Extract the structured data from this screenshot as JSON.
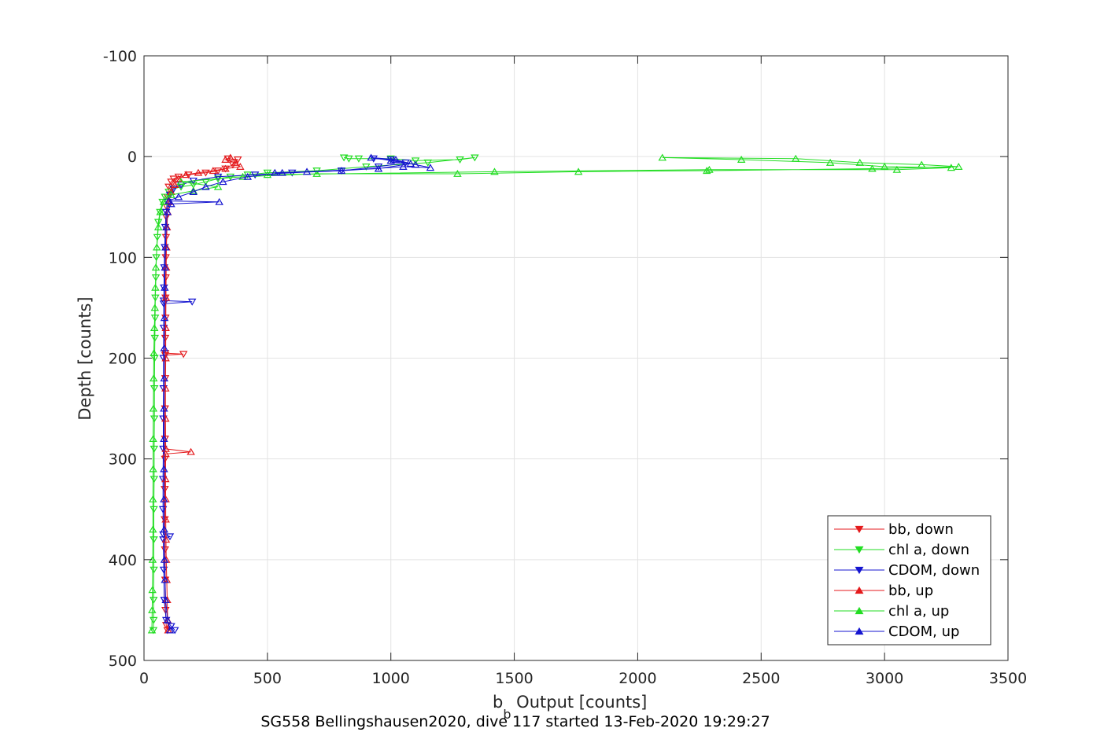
{
  "chart_data": {
    "type": "line",
    "xlabel_main": "b",
    "xlabel_sub": "b",
    "xlabel_rest": " Output [counts]",
    "ylabel": "Depth [counts]",
    "caption": "SG558 Bellingshausen2020, dive 117 started 13-Feb-2020 19:29:27",
    "xlim": [
      0,
      3500
    ],
    "ylim": [
      -100,
      500
    ],
    "y_reversed": true,
    "grid": true,
    "legend_position": "bottom-right",
    "xticks": [
      0,
      500,
      1000,
      1500,
      2000,
      2500,
      3000,
      3500
    ],
    "yticks": [
      -100,
      0,
      100,
      200,
      300,
      400,
      500
    ],
    "xtick_labels": [
      "0",
      "500",
      "1000",
      "1500",
      "2000",
      "2500",
      "3000",
      "3500"
    ],
    "ytick_labels": [
      "-100",
      "0",
      "100",
      "200",
      "300",
      "400",
      "500"
    ],
    "series": [
      {
        "name": "bb, down",
        "color": "#e41a1c",
        "marker": "triangle-down",
        "points": [
          [
            340,
            2
          ],
          [
            380,
            3
          ],
          [
            360,
            8
          ],
          [
            330,
            12
          ],
          [
            300,
            14
          ],
          [
            250,
            16
          ],
          [
            180,
            18
          ],
          [
            140,
            20
          ],
          [
            120,
            22
          ],
          [
            110,
            25
          ],
          [
            100,
            30
          ],
          [
            95,
            40
          ],
          [
            92,
            50
          ],
          [
            90,
            60
          ],
          [
            89,
            80
          ],
          [
            88,
            100
          ],
          [
            88,
            120
          ],
          [
            87,
            140
          ],
          [
            87,
            160
          ],
          [
            86,
            180
          ],
          [
            86,
            195
          ],
          [
            160,
            196
          ],
          [
            86,
            197
          ],
          [
            86,
            220
          ],
          [
            85,
            250
          ],
          [
            85,
            280
          ],
          [
            85,
            300
          ],
          [
            84,
            330
          ],
          [
            84,
            360
          ],
          [
            85,
            390
          ],
          [
            86,
            420
          ],
          [
            87,
            450
          ],
          [
            90,
            465
          ],
          [
            95,
            470
          ]
        ]
      },
      {
        "name": "chl a, down",
        "color": "#22dd22",
        "marker": "triangle-down",
        "points": [
          [
            810,
            1
          ],
          [
            830,
            2
          ],
          [
            870,
            2
          ],
          [
            1000,
            2
          ],
          [
            1100,
            4
          ],
          [
            1280,
            3
          ],
          [
            1340,
            1
          ],
          [
            1150,
            6
          ],
          [
            900,
            10
          ],
          [
            700,
            14
          ],
          [
            500,
            16
          ],
          [
            420,
            18
          ],
          [
            350,
            20
          ],
          [
            300,
            22
          ],
          [
            250,
            25
          ],
          [
            200,
            28
          ],
          [
            150,
            30
          ],
          [
            120,
            32
          ],
          [
            100,
            35
          ],
          [
            85,
            40
          ],
          [
            75,
            45
          ],
          [
            65,
            55
          ],
          [
            58,
            65
          ],
          [
            54,
            80
          ],
          [
            50,
            100
          ],
          [
            48,
            120
          ],
          [
            46,
            140
          ],
          [
            45,
            160
          ],
          [
            44,
            180
          ],
          [
            43,
            200
          ],
          [
            42,
            230
          ],
          [
            42,
            260
          ],
          [
            41,
            290
          ],
          [
            41,
            320
          ],
          [
            40,
            350
          ],
          [
            40,
            380
          ],
          [
            40,
            410
          ],
          [
            39,
            440
          ],
          [
            39,
            460
          ],
          [
            38,
            470
          ]
        ]
      },
      {
        "name": "CDOM, down",
        "color": "#1515d0",
        "marker": "triangle-down",
        "points": [
          [
            930,
            2
          ],
          [
            1000,
            3
          ],
          [
            1060,
            6
          ],
          [
            950,
            10
          ],
          [
            800,
            14
          ],
          [
            600,
            16
          ],
          [
            450,
            18
          ],
          [
            300,
            20
          ],
          [
            200,
            24
          ],
          [
            150,
            28
          ],
          [
            120,
            32
          ],
          [
            105,
            38
          ],
          [
            95,
            45
          ],
          [
            90,
            55
          ],
          [
            86,
            70
          ],
          [
            84,
            90
          ],
          [
            82,
            110
          ],
          [
            81,
            130
          ],
          [
            80,
            143
          ],
          [
            195,
            144
          ],
          [
            80,
            146
          ],
          [
            80,
            170
          ],
          [
            79,
            200
          ],
          [
            79,
            230
          ],
          [
            78,
            260
          ],
          [
            78,
            290
          ],
          [
            77,
            320
          ],
          [
            77,
            350
          ],
          [
            78,
            375
          ],
          [
            105,
            377
          ],
          [
            78,
            380
          ],
          [
            80,
            410
          ],
          [
            82,
            440
          ],
          [
            90,
            460
          ],
          [
            110,
            466
          ],
          [
            125,
            470
          ]
        ]
      },
      {
        "name": "bb, up",
        "color": "#e41a1c",
        "marker": "triangle-up",
        "points": [
          [
            98,
            470
          ],
          [
            96,
            460
          ],
          [
            94,
            440
          ],
          [
            92,
            420
          ],
          [
            90,
            400
          ],
          [
            89,
            380
          ],
          [
            88,
            360
          ],
          [
            88,
            340
          ],
          [
            87,
            320
          ],
          [
            88,
            295
          ],
          [
            190,
            293
          ],
          [
            88,
            290
          ],
          [
            87,
            260
          ],
          [
            87,
            230
          ],
          [
            88,
            200
          ],
          [
            88,
            170
          ],
          [
            89,
            140
          ],
          [
            90,
            110
          ],
          [
            91,
            90
          ],
          [
            93,
            70
          ],
          [
            96,
            55
          ],
          [
            100,
            45
          ],
          [
            110,
            35
          ],
          [
            125,
            28
          ],
          [
            140,
            22
          ],
          [
            170,
            18
          ],
          [
            220,
            16
          ],
          [
            280,
            14
          ],
          [
            330,
            12
          ],
          [
            390,
            10
          ],
          [
            370,
            6
          ],
          [
            330,
            3
          ],
          [
            350,
            1
          ]
        ]
      },
      {
        "name": "chl a, up",
        "color": "#22dd22",
        "marker": "triangle-up",
        "points": [
          [
            32,
            470
          ],
          [
            33,
            450
          ],
          [
            34,
            430
          ],
          [
            35,
            400
          ],
          [
            36,
            370
          ],
          [
            36,
            340
          ],
          [
            37,
            310
          ],
          [
            37,
            280
          ],
          [
            38,
            250
          ],
          [
            39,
            220
          ],
          [
            40,
            195
          ],
          [
            42,
            170
          ],
          [
            44,
            150
          ],
          [
            46,
            130
          ],
          [
            48,
            110
          ],
          [
            52,
            90
          ],
          [
            58,
            70
          ],
          [
            66,
            55
          ],
          [
            80,
            45
          ],
          [
            110,
            38
          ],
          [
            200,
            34
          ],
          [
            300,
            30
          ],
          [
            150,
            25
          ],
          [
            400,
            20
          ],
          [
            700,
            17
          ],
          [
            1270,
            17
          ],
          [
            1760,
            15
          ],
          [
            2280,
            14
          ],
          [
            2950,
            12
          ],
          [
            3300,
            10
          ],
          [
            3150,
            8
          ],
          [
            2900,
            6
          ],
          [
            2640,
            2
          ],
          [
            2100,
            1
          ],
          [
            2420,
            3
          ],
          [
            2780,
            6
          ],
          [
            3000,
            10
          ],
          [
            3270,
            11
          ],
          [
            3050,
            13
          ],
          [
            2290,
            13
          ],
          [
            1420,
            15
          ],
          [
            500,
            18
          ]
        ]
      },
      {
        "name": "CDOM, up",
        "color": "#1515d0",
        "marker": "triangle-up",
        "points": [
          [
            105,
            470
          ],
          [
            95,
            460
          ],
          [
            88,
            440
          ],
          [
            85,
            420
          ],
          [
            83,
            400
          ],
          [
            82,
            370
          ],
          [
            81,
            340
          ],
          [
            81,
            310
          ],
          [
            81,
            280
          ],
          [
            81,
            250
          ],
          [
            82,
            220
          ],
          [
            82,
            190
          ],
          [
            83,
            160
          ],
          [
            84,
            130
          ],
          [
            85,
            110
          ],
          [
            87,
            90
          ],
          [
            90,
            70
          ],
          [
            95,
            55
          ],
          [
            110,
            47
          ],
          [
            305,
            45
          ],
          [
            100,
            44
          ],
          [
            140,
            40
          ],
          [
            200,
            35
          ],
          [
            250,
            30
          ],
          [
            320,
            25
          ],
          [
            420,
            20
          ],
          [
            560,
            16
          ],
          [
            800,
            14
          ],
          [
            1050,
            10
          ],
          [
            1160,
            11
          ],
          [
            1100,
            8
          ],
          [
            1000,
            4
          ],
          [
            920,
            1
          ],
          [
            1020,
            3
          ],
          [
            1080,
            7
          ],
          [
            950,
            12
          ],
          [
            660,
            15
          ],
          [
            530,
            16
          ]
        ]
      }
    ]
  }
}
